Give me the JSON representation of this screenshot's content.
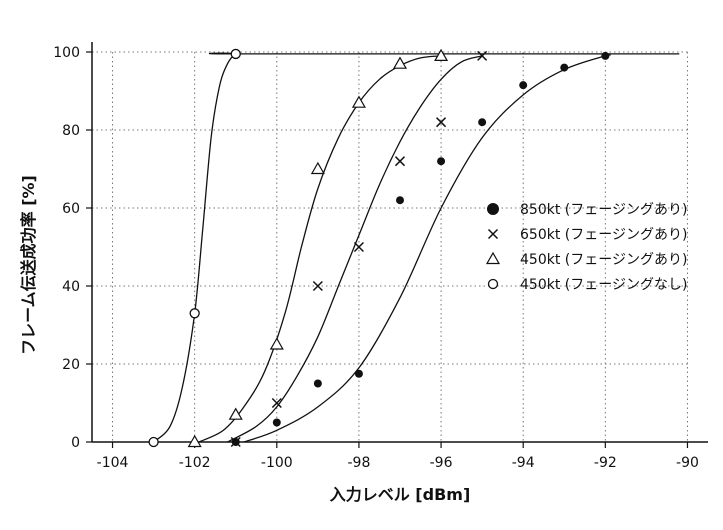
{
  "chart_data": {
    "type": "scatter",
    "xlabel": "入力レベル [dBm]",
    "ylabel": "フレーム伝送成功率 [%]",
    "xlim": [
      -104.5,
      -89.5
    ],
    "ylim": [
      0,
      100
    ],
    "xticks": [
      -104,
      -102,
      -100,
      -98,
      -96,
      -94,
      -92,
      -90
    ],
    "yticks": [
      0,
      20,
      40,
      60,
      80,
      100
    ],
    "xtick_labels": [
      "-104",
      "-102",
      "-100",
      "-98",
      "-96",
      "-94",
      "-92",
      "-90"
    ],
    "ytick_labels": [
      "0",
      "20",
      "40",
      "60",
      "80",
      "100"
    ],
    "grid": "dotted",
    "legend_position": "right",
    "series": [
      {
        "name": "850kt (フェージングあり)",
        "marker": "filled-circle",
        "points": [
          [
            -101,
            0
          ],
          [
            -100,
            5
          ],
          [
            -99,
            15
          ],
          [
            -98,
            17.5
          ],
          [
            -97,
            62
          ],
          [
            -96,
            72
          ],
          [
            -95,
            82
          ],
          [
            -94,
            91.5
          ],
          [
            -93,
            96
          ],
          [
            -92,
            99
          ]
        ],
        "curve": [
          [
            -100.8,
            0
          ],
          [
            -100,
            3
          ],
          [
            -99,
            9
          ],
          [
            -98,
            19
          ],
          [
            -97,
            37
          ],
          [
            -96,
            60
          ],
          [
            -95,
            78
          ],
          [
            -94,
            89
          ],
          [
            -93,
            95.5
          ],
          [
            -92,
            99
          ],
          [
            -91.9,
            99
          ]
        ]
      },
      {
        "name": "650kt (フェージングあり)",
        "marker": "cross",
        "points": [
          [
            -101,
            0
          ],
          [
            -100,
            10
          ],
          [
            -99,
            40
          ],
          [
            -98,
            50
          ],
          [
            -97,
            72
          ],
          [
            -96,
            82
          ],
          [
            -95,
            99
          ]
        ],
        "curve": [
          [
            -101.2,
            0
          ],
          [
            -100.5,
            4
          ],
          [
            -100,
            9
          ],
          [
            -99.5,
            17
          ],
          [
            -99,
            27
          ],
          [
            -98.5,
            40
          ],
          [
            -98,
            53
          ],
          [
            -97.5,
            66
          ],
          [
            -97,
            77
          ],
          [
            -96.5,
            86
          ],
          [
            -96,
            93
          ],
          [
            -95.5,
            97.5
          ],
          [
            -95,
            99
          ]
        ]
      },
      {
        "name": "450kt (フェージングあり)",
        "marker": "triangle",
        "points": [
          [
            -102,
            0
          ],
          [
            -101,
            7
          ],
          [
            -100,
            25
          ],
          [
            -99,
            70
          ],
          [
            -98,
            87
          ],
          [
            -97,
            97
          ],
          [
            -96,
            99
          ]
        ],
        "curve": [
          [
            -101.9,
            0
          ],
          [
            -101.3,
            3
          ],
          [
            -100.8,
            9
          ],
          [
            -100.3,
            18
          ],
          [
            -99.8,
            33
          ],
          [
            -99.4,
            50
          ],
          [
            -99,
            65
          ],
          [
            -98.5,
            78
          ],
          [
            -98,
            87
          ],
          [
            -97.5,
            93
          ],
          [
            -97,
            96.5
          ],
          [
            -96.5,
            98.5
          ],
          [
            -96,
            99
          ]
        ]
      },
      {
        "name": "450kt (フェージングなし)",
        "marker": "open-circle",
        "points": [
          [
            -103,
            0
          ],
          [
            -102,
            33
          ],
          [
            -101,
            99.5
          ]
        ],
        "curve": [
          [
            -103,
            0
          ],
          [
            -102.6,
            4
          ],
          [
            -102.3,
            14
          ],
          [
            -102,
            33
          ],
          [
            -101.8,
            55
          ],
          [
            -101.6,
            78
          ],
          [
            -101.4,
            91
          ],
          [
            -101.2,
            97
          ],
          [
            -101,
            99.5
          ],
          [
            -100.8,
            99.5
          ],
          [
            -90.2,
            99.5
          ]
        ]
      }
    ]
  }
}
